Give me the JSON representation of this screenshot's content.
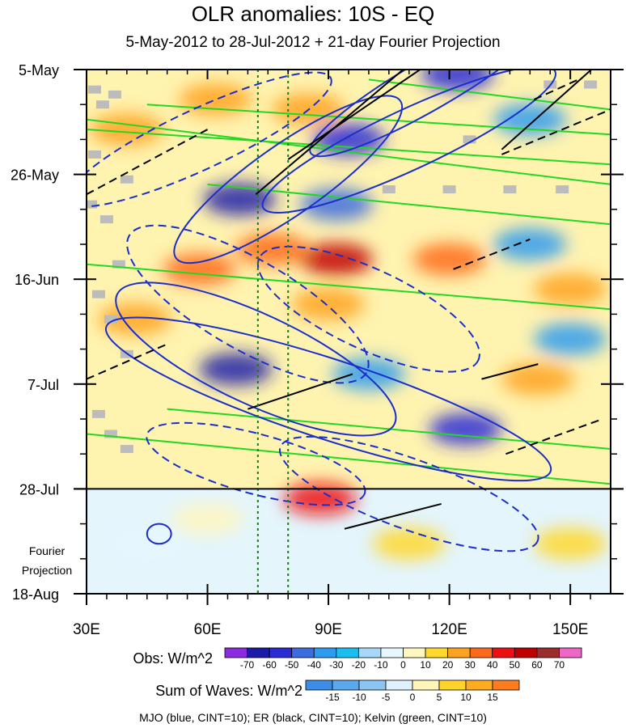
{
  "chart_data": {
    "type": "heatmap",
    "title": "OLR anomalies: 10S - EQ",
    "subtitle": "5-May-2012 to 28-Jul-2012 + 21-day Fourier Projection",
    "x_ticks": [
      {
        "value": 30,
        "label": "30E"
      },
      {
        "value": 60,
        "label": "60E"
      },
      {
        "value": 90,
        "label": "90E"
      },
      {
        "value": 120,
        "label": "120E"
      },
      {
        "value": 150,
        "label": "150E"
      }
    ],
    "xlim": [
      30,
      160
    ],
    "y_ticks": [
      {
        "day": 0,
        "label": "5-May"
      },
      {
        "day": 21,
        "label": "26-May"
      },
      {
        "day": 42,
        "label": "16-Jun"
      },
      {
        "day": 63,
        "label": "7-Jul"
      },
      {
        "day": 84,
        "label": "28-Jul"
      },
      {
        "day": 105,
        "label": "18-Aug"
      }
    ],
    "projection_start_label": "28-Jul",
    "projection_label_line1": "Fourier",
    "projection_label_line2": "Projection",
    "vertical_reference_lines_lon": [
      72.5,
      80
    ],
    "obs_colorbar": {
      "title": "Obs: W/m^2",
      "levels": [
        "-70",
        "-60",
        "-50",
        "-40",
        "-30",
        "-20",
        "-10",
        "0",
        "10",
        "20",
        "30",
        "40",
        "50",
        "60",
        "70"
      ],
      "colors": [
        "#8a2be2",
        "#1c1ca8",
        "#2b2bd6",
        "#3c6ce0",
        "#2d9bf0",
        "#17c0f0",
        "#a8d8f8",
        "#e6f7ff",
        "#fff7c0",
        "#ffd82a",
        "#ffa21f",
        "#ff6a1a",
        "#ee1010",
        "#c00000",
        "#9b2d2d",
        "#ee66c8"
      ]
    },
    "waves_colorbar": {
      "title": "Sum of Waves: W/m^2",
      "levels": [
        "-15",
        "-10",
        "-5",
        "0",
        "5",
        "10",
        "15"
      ],
      "colors": [
        "#3c8de6",
        "#5ba8ee",
        "#8cc5f2",
        "#dff1fb",
        "#fff5b8",
        "#ffd42a",
        "#ffab1f",
        "#ff7c1e"
      ]
    },
    "footer": "MJO (blue, CINT=10); ER (black, CINT=10); Kelvin (green, CINT=10)",
    "contour_colors": {
      "mjo": "#1a2ecc",
      "er": "#000000",
      "kelvin": "#22d822",
      "reference_line": "#1c7a1c",
      "missing": "#bcbcbc"
    },
    "anomaly_features": [
      {
        "lon": 68,
        "day": 26,
        "value": -70
      },
      {
        "lon": 67,
        "day": 60,
        "value": -70
      },
      {
        "lon": 92,
        "day": 27,
        "value": -50
      },
      {
        "lon": 95,
        "day": 14,
        "value": -60
      },
      {
        "lon": 100,
        "day": 61,
        "value": -40
      },
      {
        "lon": 124,
        "day": 72,
        "value": -60
      },
      {
        "lon": 122,
        "day": 1,
        "value": -60
      },
      {
        "lon": 140,
        "day": 35,
        "value": -40
      },
      {
        "lon": 140,
        "day": 10,
        "value": -40
      },
      {
        "lon": 150,
        "day": 54,
        "value": -40
      },
      {
        "lon": 92,
        "day": 38,
        "value": 50
      },
      {
        "lon": 76,
        "day": 36,
        "value": 30
      },
      {
        "lon": 58,
        "day": 40,
        "value": 30
      },
      {
        "lon": 120,
        "day": 38,
        "value": 30
      },
      {
        "lon": 90,
        "day": 47,
        "value": 20
      },
      {
        "lon": 42,
        "day": 50,
        "value": 20
      },
      {
        "lon": 62,
        "day": 6,
        "value": 20
      },
      {
        "lon": 85,
        "day": 8,
        "value": 20
      },
      {
        "lon": 40,
        "day": 12,
        "value": 20
      },
      {
        "lon": 88,
        "day": 86,
        "value": 40
      },
      {
        "lon": 150,
        "day": 44,
        "value": 20
      },
      {
        "lon": 142,
        "day": 62,
        "value": 20
      },
      {
        "lon": 110,
        "day": 95,
        "value": 10
      },
      {
        "lon": 150,
        "day": 95,
        "value": 10
      },
      {
        "lon": 45,
        "day": 95,
        "value": -5
      },
      {
        "lon": 60,
        "day": 90,
        "value": 5
      }
    ]
  }
}
